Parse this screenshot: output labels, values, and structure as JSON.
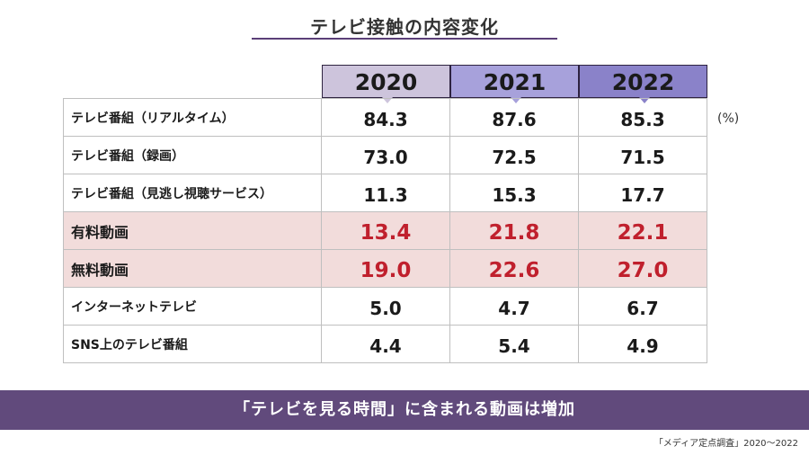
{
  "title": "テレビ接触の内容変化",
  "unit": "(%)",
  "colors": {
    "header_2020": "#cdc4dc",
    "header_2021": "#a7a1db",
    "header_2022": "#8a82c9",
    "highlight_row_bg": "#f2dcdb",
    "highlight_value": "#c0202d",
    "banner": "#614a7c",
    "title_rule": "#5b3f78"
  },
  "chart_data": {
    "type": "table",
    "columns": [
      "2020",
      "2021",
      "2022"
    ],
    "rows": [
      {
        "label": "テレビ番組（リアルタイム）",
        "values": [
          "84.3",
          "87.6",
          "85.3"
        ],
        "highlight": false
      },
      {
        "label": "テレビ番組（録画）",
        "values": [
          "73.0",
          "72.5",
          "71.5"
        ],
        "highlight": false
      },
      {
        "label": "テレビ番組（見逃し視聴サービス）",
        "values": [
          "11.3",
          "15.3",
          "17.7"
        ],
        "highlight": false
      },
      {
        "label": "有料動画",
        "values": [
          "13.4",
          "21.8",
          "22.1"
        ],
        "highlight": true
      },
      {
        "label": "無料動画",
        "values": [
          "19.0",
          "22.6",
          "27.0"
        ],
        "highlight": true
      },
      {
        "label": "インターネットテレビ",
        "values": [
          "5.0",
          "4.7",
          "6.7"
        ],
        "highlight": false
      },
      {
        "label": "SNS上のテレビ番組",
        "values": [
          "4.4",
          "5.4",
          "4.9"
        ],
        "highlight": false
      }
    ]
  },
  "banner": "「テレビを見る時間」に含まれる動画は増加",
  "source": "「メディア定点調査」2020～2022"
}
